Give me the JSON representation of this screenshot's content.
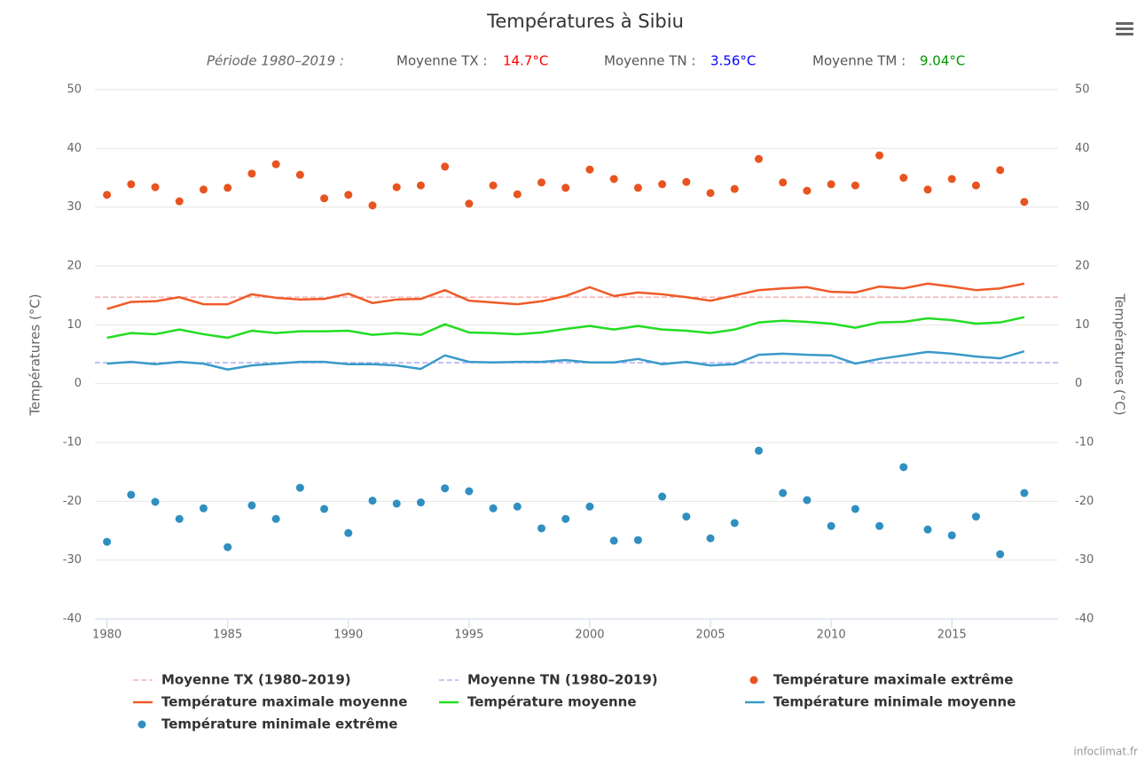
{
  "chart_data": {
    "type": "line",
    "title": "Températures à Sibiu",
    "subtitle": {
      "period": "Période 1980–2019 :",
      "items": [
        {
          "label": "Moyenne TX :",
          "value": 14.7,
          "value_label": "14.7°C",
          "color": "#ff0000"
        },
        {
          "label": "Moyenne TN :",
          "value": 3.56,
          "value_label": "3.56°C",
          "color": "#0000ff"
        },
        {
          "label": "Moyenne TM :",
          "value": 9.04,
          "value_label": "9.04°C",
          "color": "#009900"
        }
      ]
    },
    "y_label": "Températures (°C)",
    "y2_label": "Températures (°C)",
    "credit": "infoclimat.fr",
    "x": [
      1980,
      1981,
      1982,
      1983,
      1984,
      1985,
      1986,
      1987,
      1988,
      1989,
      1990,
      1991,
      1992,
      1993,
      1994,
      1995,
      1996,
      1997,
      1998,
      1999,
      2000,
      2001,
      2002,
      2003,
      2004,
      2005,
      2006,
      2007,
      2008,
      2009,
      2010,
      2011,
      2012,
      2013,
      2014,
      2015,
      2016,
      2017,
      2018
    ],
    "xlim": [
      1979.5,
      2019.4
    ],
    "xticks": [
      1980,
      1985,
      1990,
      1995,
      2000,
      2005,
      2010,
      2015
    ],
    "ylim": [
      -40,
      50
    ],
    "yticks": [
      -40,
      -30,
      -20,
      -10,
      0,
      10,
      20,
      30,
      40,
      50
    ],
    "y2lim": [
      -40,
      50
    ],
    "y2ticks": [
      -40,
      -30,
      -20,
      -10,
      0,
      10,
      20,
      30,
      40,
      50
    ],
    "grid": true,
    "legend": "bottom",
    "series": [
      {
        "name": "Moyenne TX (1980–2019)",
        "kind": "hline",
        "color": "#f4a0a8",
        "value": 14.7
      },
      {
        "name": "Moyenne TN (1980–2019)",
        "kind": "hline",
        "color": "#a6a6f0",
        "value": 3.56
      },
      {
        "name": "Température maximale extrême",
        "kind": "scatter",
        "color": "#e8541f",
        "values": [
          32.1,
          33.9,
          33.4,
          31.0,
          33.0,
          33.3,
          35.7,
          37.3,
          35.5,
          31.5,
          32.1,
          30.3,
          33.4,
          33.7,
          36.9,
          30.6,
          33.7,
          32.2,
          34.2,
          33.3,
          36.4,
          34.8,
          33.3,
          33.9,
          34.3,
          32.4,
          33.1,
          38.2,
          34.2,
          32.8,
          33.9,
          33.7,
          38.8,
          35.0,
          33.0,
          34.8,
          33.7,
          36.3,
          30.9
        ]
      },
      {
        "name": "Température maximale moyenne",
        "kind": "line",
        "color": "#f05a28",
        "values": [
          12.7,
          13.9,
          14.0,
          14.7,
          13.5,
          13.5,
          15.2,
          14.6,
          14.3,
          14.4,
          15.3,
          13.7,
          14.3,
          14.4,
          15.9,
          14.1,
          13.8,
          13.5,
          14.0,
          14.9,
          16.4,
          14.9,
          15.5,
          15.2,
          14.7,
          14.1,
          15.0,
          15.9,
          16.2,
          16.4,
          15.6,
          15.5,
          16.5,
          16.2,
          17.0,
          16.5,
          15.9,
          16.2,
          17.0
        ]
      },
      {
        "name": "Température moyenne",
        "kind": "line",
        "color": "#22dd22",
        "values": [
          7.8,
          8.6,
          8.4,
          9.2,
          8.4,
          7.8,
          9.0,
          8.6,
          8.9,
          8.9,
          9.0,
          8.3,
          8.6,
          8.3,
          10.1,
          8.7,
          8.6,
          8.4,
          8.7,
          9.3,
          9.8,
          9.2,
          9.8,
          9.2,
          9.0,
          8.6,
          9.2,
          10.4,
          10.7,
          10.5,
          10.2,
          9.5,
          10.4,
          10.5,
          11.1,
          10.8,
          10.2,
          10.4,
          11.3
        ]
      },
      {
        "name": "Température minimale moyenne",
        "kind": "line",
        "color": "#3a9ac9",
        "values": [
          3.4,
          3.7,
          3.3,
          3.7,
          3.4,
          2.4,
          3.1,
          3.4,
          3.7,
          3.7,
          3.3,
          3.3,
          3.1,
          2.5,
          4.8,
          3.7,
          3.6,
          3.7,
          3.7,
          4.0,
          3.6,
          3.6,
          4.2,
          3.3,
          3.7,
          3.1,
          3.3,
          4.9,
          5.1,
          4.9,
          4.8,
          3.4,
          4.2,
          4.8,
          5.4,
          5.1,
          4.6,
          4.3,
          5.5
        ]
      },
      {
        "name": "Température minimale extrême",
        "kind": "scatter",
        "color": "#2f8fc0",
        "values": [
          -26.9,
          -18.9,
          -20.1,
          -23.0,
          -21.2,
          -27.8,
          -20.7,
          -23.0,
          -17.7,
          -21.3,
          -25.4,
          -19.9,
          -20.4,
          -20.2,
          -17.8,
          -18.3,
          -21.2,
          -20.9,
          -24.6,
          -23.0,
          -20.9,
          -26.7,
          -26.6,
          -19.2,
          -22.6,
          -26.3,
          -23.7,
          -11.4,
          -18.6,
          -19.8,
          -24.2,
          -21.3,
          -24.2,
          -14.2,
          -24.8,
          -25.8,
          -22.6,
          -29.0,
          -18.6
        ]
      }
    ]
  }
}
